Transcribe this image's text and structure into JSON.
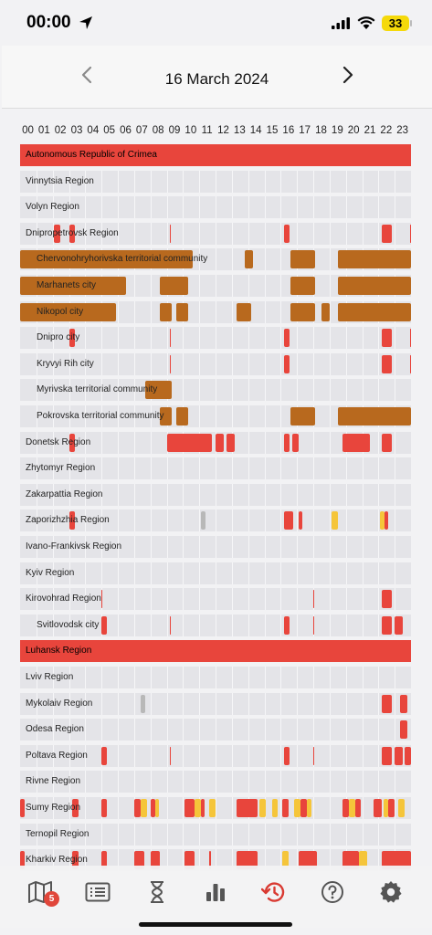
{
  "status_bar": {
    "time": "00:00",
    "battery": "33"
  },
  "header": {
    "date": "16 March 2024"
  },
  "hours": [
    "00",
    "01",
    "02",
    "03",
    "04",
    "05",
    "06",
    "07",
    "08",
    "09",
    "10",
    "11",
    "12",
    "13",
    "14",
    "15",
    "16",
    "17",
    "18",
    "19",
    "20",
    "21",
    "22",
    "23"
  ],
  "colors": {
    "red": "#e8453c",
    "orange": "#b8691e",
    "yellow": "#f5c53a",
    "gray": "#b8b8b8",
    "row_bg": "#e4e4e8"
  },
  "regions": [
    {
      "label": "Autonomous Republic of Crimea",
      "indent": 0,
      "full": "red",
      "segments": []
    },
    {
      "label": "Vinnytsia Region",
      "indent": 0,
      "segments": []
    },
    {
      "label": "Volyn Region",
      "indent": 0,
      "segments": []
    },
    {
      "label": "Dnipropetrovsk Region",
      "indent": 0,
      "segments": [
        [
          2.1,
          2.45,
          "red"
        ],
        [
          3.0,
          3.35,
          "red"
        ],
        [
          9.2,
          9.26,
          "red"
        ],
        [
          16.2,
          16.55,
          "red"
        ],
        [
          22.2,
          22.85,
          "red"
        ],
        [
          23.95,
          24,
          "red"
        ]
      ]
    },
    {
      "label": "Chervonohryhorivska territorial community",
      "indent": 1,
      "segments": [
        [
          0,
          10.6,
          "orange"
        ],
        [
          13.8,
          14.3,
          "orange"
        ],
        [
          16.6,
          18.1,
          "orange"
        ],
        [
          19.5,
          24,
          "orange"
        ]
      ]
    },
    {
      "label": "Marhanets city",
      "indent": 1,
      "segments": [
        [
          0,
          6.5,
          "orange"
        ],
        [
          8.6,
          10.3,
          "orange"
        ],
        [
          16.6,
          18.1,
          "orange"
        ],
        [
          19.5,
          24,
          "orange"
        ]
      ]
    },
    {
      "label": "Nikopol city",
      "indent": 1,
      "segments": [
        [
          0,
          5.9,
          "orange"
        ],
        [
          8.6,
          9.3,
          "orange"
        ],
        [
          9.6,
          10.3,
          "orange"
        ],
        [
          13.3,
          14.2,
          "orange"
        ],
        [
          16.6,
          18.1,
          "orange"
        ],
        [
          18.5,
          19.0,
          "orange"
        ],
        [
          19.5,
          24,
          "orange"
        ]
      ]
    },
    {
      "label": "Dnipro city",
      "indent": 1,
      "segments": [
        [
          3.0,
          3.35,
          "red"
        ],
        [
          9.2,
          9.26,
          "red"
        ],
        [
          16.2,
          16.55,
          "red"
        ],
        [
          22.2,
          22.85,
          "red"
        ],
        [
          23.95,
          24,
          "red"
        ]
      ]
    },
    {
      "label": "Kryvyi Rih city",
      "indent": 1,
      "segments": [
        [
          9.2,
          9.26,
          "red"
        ],
        [
          16.2,
          16.55,
          "red"
        ],
        [
          22.2,
          22.85,
          "red"
        ],
        [
          23.95,
          24,
          "red"
        ]
      ]
    },
    {
      "label": "Myrivska territorial community",
      "indent": 1,
      "segments": [
        [
          7.7,
          9.3,
          "orange"
        ]
      ]
    },
    {
      "label": "Pokrovska territorial community",
      "indent": 1,
      "segments": [
        [
          8.6,
          9.3,
          "orange"
        ],
        [
          9.6,
          10.3,
          "orange"
        ],
        [
          16.6,
          18.1,
          "orange"
        ],
        [
          19.5,
          24,
          "orange"
        ]
      ]
    },
    {
      "label": "Donetsk Region",
      "indent": 0,
      "segments": [
        [
          3.0,
          3.35,
          "red"
        ],
        [
          9.0,
          11.8,
          "red"
        ],
        [
          12.0,
          12.5,
          "red"
        ],
        [
          12.7,
          13.2,
          "red"
        ],
        [
          16.2,
          16.55,
          "red"
        ],
        [
          16.7,
          17.1,
          "red"
        ],
        [
          19.8,
          21.5,
          "red"
        ],
        [
          22.2,
          22.85,
          "red"
        ]
      ]
    },
    {
      "label": "Zhytomyr Region",
      "indent": 0,
      "segments": []
    },
    {
      "label": "Zakarpattia Region",
      "indent": 0,
      "segments": []
    },
    {
      "label": "Zaporizhzhia Region",
      "indent": 0,
      "segments": [
        [
          3.0,
          3.35,
          "red"
        ],
        [
          11.1,
          11.4,
          "gray"
        ],
        [
          16.2,
          16.75,
          "red"
        ],
        [
          17.1,
          17.3,
          "red"
        ],
        [
          19.1,
          19.5,
          "yellow"
        ],
        [
          22.1,
          22.4,
          "yellow"
        ],
        [
          22.4,
          22.6,
          "red"
        ]
      ]
    },
    {
      "label": "Ivano-Frankivsk Region",
      "indent": 0,
      "segments": []
    },
    {
      "label": "Kyiv Region",
      "indent": 0,
      "segments": []
    },
    {
      "label": "Kirovohrad Region",
      "indent": 0,
      "segments": [
        [
          5.0,
          5.06,
          "red"
        ],
        [
          18.0,
          18.06,
          "red"
        ],
        [
          22.2,
          22.85,
          "red"
        ]
      ]
    },
    {
      "label": "Svitlovodsk city",
      "indent": 1,
      "segments": [
        [
          5.0,
          5.3,
          "red"
        ],
        [
          9.2,
          9.26,
          "red"
        ],
        [
          16.2,
          16.55,
          "red"
        ],
        [
          18.0,
          18.06,
          "red"
        ],
        [
          22.2,
          22.85,
          "red"
        ],
        [
          23.0,
          23.5,
          "red"
        ]
      ]
    },
    {
      "label": "Luhansk Region",
      "indent": 0,
      "full": "red",
      "segments": []
    },
    {
      "label": "Lviv Region",
      "indent": 0,
      "segments": []
    },
    {
      "label": "Mykolaiv Region",
      "indent": 0,
      "segments": [
        [
          7.4,
          7.7,
          "gray"
        ],
        [
          22.2,
          22.85,
          "red"
        ],
        [
          23.3,
          23.8,
          "red"
        ]
      ]
    },
    {
      "label": "Odesa Region",
      "indent": 0,
      "segments": [
        [
          23.3,
          23.8,
          "red"
        ]
      ]
    },
    {
      "label": "Poltava Region",
      "indent": 0,
      "segments": [
        [
          5.0,
          5.3,
          "red"
        ],
        [
          9.2,
          9.26,
          "red"
        ],
        [
          16.2,
          16.55,
          "red"
        ],
        [
          18.0,
          18.06,
          "red"
        ],
        [
          22.2,
          22.85,
          "red"
        ],
        [
          23.0,
          23.5,
          "red"
        ],
        [
          23.6,
          24,
          "red"
        ]
      ]
    },
    {
      "label": "Rivne Region",
      "indent": 0,
      "segments": []
    },
    {
      "label": "Sumy Region",
      "indent": 0,
      "segments": [
        [
          0,
          0.3,
          "red"
        ],
        [
          3.2,
          3.6,
          "red"
        ],
        [
          5.0,
          5.3,
          "red"
        ],
        [
          7.0,
          7.4,
          "red"
        ],
        [
          7.4,
          7.8,
          "yellow"
        ],
        [
          8.0,
          8.3,
          "red"
        ],
        [
          8.3,
          8.55,
          "yellow"
        ],
        [
          10.1,
          10.7,
          "red"
        ],
        [
          10.7,
          11.1,
          "yellow"
        ],
        [
          11.1,
          11.3,
          "red"
        ],
        [
          11.6,
          12.0,
          "yellow"
        ],
        [
          13.3,
          14.6,
          "red"
        ],
        [
          14.7,
          15.1,
          "yellow"
        ],
        [
          15.5,
          15.8,
          "yellow"
        ],
        [
          16.1,
          16.5,
          "red"
        ],
        [
          16.8,
          17.2,
          "yellow"
        ],
        [
          17.2,
          17.6,
          "red"
        ],
        [
          17.6,
          17.9,
          "yellow"
        ],
        [
          19.8,
          20.2,
          "red"
        ],
        [
          20.2,
          20.6,
          "yellow"
        ],
        [
          20.6,
          20.9,
          "red"
        ],
        [
          21.7,
          22.2,
          "red"
        ],
        [
          22.3,
          22.6,
          "yellow"
        ],
        [
          22.6,
          23.0,
          "red"
        ],
        [
          23.2,
          23.6,
          "yellow"
        ]
      ]
    },
    {
      "label": "Ternopil Region",
      "indent": 0,
      "segments": []
    },
    {
      "label": "Kharkiv Region",
      "indent": 0,
      "segments": [
        [
          0,
          0.3,
          "red"
        ],
        [
          3.2,
          3.6,
          "red"
        ],
        [
          5.0,
          5.3,
          "red"
        ],
        [
          7.0,
          7.6,
          "red"
        ],
        [
          8.0,
          8.6,
          "red"
        ],
        [
          10.1,
          10.7,
          "red"
        ],
        [
          11.6,
          11.7,
          "red"
        ],
        [
          13.3,
          14.6,
          "red"
        ],
        [
          16.1,
          16.5,
          "yellow"
        ],
        [
          17.1,
          18.2,
          "red"
        ],
        [
          19.8,
          20.8,
          "red"
        ],
        [
          20.8,
          21.3,
          "yellow"
        ],
        [
          22.2,
          24,
          "red"
        ]
      ]
    }
  ],
  "tabbar": {
    "badge": "5",
    "tabs": [
      "map-icon",
      "list-icon",
      "hourglass-icon",
      "stats-icon",
      "history-icon",
      "help-icon",
      "settings-icon"
    ]
  }
}
